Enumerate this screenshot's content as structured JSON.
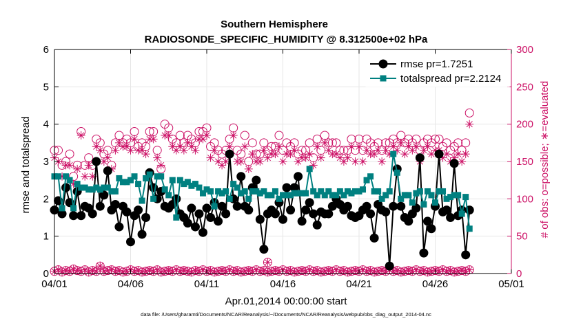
{
  "colors": {
    "rmse": "#000000",
    "totalspread": "#008080",
    "obs": "#cc1166",
    "axis_left": "#000000",
    "axis_right": "#cc1166"
  },
  "chart_data": {
    "type": "line",
    "title_line1": "Southern Hemisphere",
    "title_line2": "RADIOSONDE_SPECIFIC_HUMIDITY @ 8.312500e+02 hPa",
    "xlabel": "Apr.01,2014 00:00:00 start",
    "ylabel_left": "rmse and totalspread",
    "ylabel_right": "# of obs: o=possible; ∗=evaluated",
    "xlim": [
      0,
      30
    ],
    "ylim_left": [
      0,
      6
    ],
    "ylim_right": [
      0,
      300
    ],
    "x_ticks": [
      0,
      5,
      10,
      15,
      20,
      25,
      30
    ],
    "x_tick_labels": [
      "04/01",
      "04/06",
      "04/11",
      "04/16",
      "04/21",
      "04/26",
      "05/01"
    ],
    "y_ticks_left": [
      0,
      1,
      2,
      3,
      4,
      5,
      6
    ],
    "y_ticks_right": [
      0,
      50,
      100,
      150,
      200,
      250,
      300
    ],
    "legend": [
      "rmse pr=1.7251",
      "totalspread pr=2.2124"
    ],
    "footnote": "data file: /Users/gharamti/Documents/NCAR/Reanalysis/~/Documents/NCAR/Reanalysis/webpub/obs_diag_output_2014-04.nc",
    "x_step_days": 0.25,
    "series": [
      {
        "name": "rmse",
        "axis": "left",
        "values": [
          1.7,
          1.95,
          1.6,
          2.3,
          1.9,
          1.55,
          2.2,
          1.55,
          1.8,
          1.75,
          1.6,
          3.0,
          1.8,
          2.1,
          2.75,
          1.7,
          1.85,
          1.25,
          1.8,
          1.65,
          0.85,
          1.55,
          1.7,
          1.05,
          1.5,
          2.7,
          2.3,
          2.0,
          2.2,
          1.8,
          1.75,
          1.85,
          2.0,
          1.6,
          1.5,
          1.35,
          1.75,
          1.25,
          1.6,
          1.1,
          1.75,
          1.5,
          1.9,
          1.4,
          1.8,
          1.6,
          3.2,
          2.0,
          1.8,
          2.6,
          1.8,
          1.7,
          2.3,
          2.5,
          1.45,
          0.65,
          1.6,
          1.7,
          1.6,
          1.9,
          1.45,
          2.3,
          1.7,
          2.3,
          2.6,
          1.4,
          1.7,
          1.9,
          1.6,
          1.3,
          1.65,
          1.6,
          1.6,
          1.8,
          2.0,
          1.85,
          1.7,
          1.8,
          1.55,
          1.5,
          1.55,
          1.7,
          1.8,
          1.6,
          0.95,
          1.85,
          1.7,
          1.65,
          0.2,
          1.8,
          2.8,
          1.8,
          1.5,
          1.4,
          1.6,
          1.75,
          3.1,
          0.55,
          1.4,
          1.2,
          1.8,
          3.2,
          1.65,
          1.7,
          1.5,
          2.95,
          1.55,
          1.7,
          0.5,
          1.7
        ],
        "marker": "circle"
      },
      {
        "name": "totalspread",
        "axis": "left",
        "values": [
          2.6,
          2.6,
          1.75,
          2.6,
          2.5,
          1.75,
          2.4,
          2.3,
          2.3,
          2.25,
          2.25,
          2.3,
          2.25,
          2.3,
          2.3,
          2.2,
          2.2,
          2.55,
          2.45,
          2.45,
          2.5,
          2.6,
          2.4,
          1.95,
          2.55,
          2.65,
          2.0,
          2.6,
          2.6,
          2.25,
          2.1,
          2.5,
          1.5,
          2.5,
          2.4,
          2.45,
          2.35,
          2.4,
          2.3,
          2.15,
          2.25,
          2.2,
          1.8,
          2.2,
          2.15,
          2.2,
          2.0,
          2.4,
          2.3,
          2.15,
          2.2,
          2.0,
          2.2,
          2.2,
          2.15,
          2.2,
          2.1,
          2.1,
          2.2,
          2.0,
          2.1,
          2.1,
          2.1,
          2.15,
          2.15,
          2.15,
          2.15,
          2.8,
          2.2,
          2.1,
          2.2,
          2.1,
          2.2,
          2.1,
          2.1,
          2.2,
          2.1,
          2.2,
          2.15,
          2.2,
          2.2,
          2.25,
          2.5,
          2.6,
          2.2,
          2.2,
          2.0,
          2.1,
          2.2,
          3.2,
          2.7,
          2.0,
          2.1,
          2.1,
          1.9,
          2.15,
          2.2,
          1.85,
          2.2,
          2.1,
          1.9,
          2.2,
          2.2,
          2.0,
          2.05,
          2.1,
          2.1,
          1.6,
          2.05,
          1.2
        ],
        "marker": "square"
      },
      {
        "name": "obs_possible",
        "axis": "right",
        "values": [
          165,
          165,
          145,
          150,
          160,
          130,
          145,
          190,
          145,
          155,
          145,
          180,
          175,
          160,
          165,
          145,
          175,
          185,
          175,
          180,
          175,
          190,
          170,
          175,
          170,
          190,
          190,
          165,
          140,
          200,
          195,
          180,
          175,
          185,
          175,
          185,
          180,
          175,
          190,
          190,
          195,
          170,
          175,
          165,
          160,
          165,
          180,
          195,
          165,
          160,
          185,
          150,
          175,
          160,
          160,
          175,
          165,
          170,
          170,
          185,
          165,
          175,
          170,
          175,
          160,
          165,
          165,
          175,
          155,
          180,
          165,
          185,
          175,
          175,
          175,
          165,
          165,
          165,
          180,
          165,
          180,
          165,
          180,
          175,
          170,
          175,
          165,
          175,
          175,
          180,
          175,
          185,
          175,
          180,
          175,
          180,
          165,
          175,
          180,
          175,
          180,
          180,
          170,
          175,
          165,
          170,
          175,
          165,
          175,
          215
        ],
        "marker": "circle-open"
      },
      {
        "name": "obs_evaluated",
        "axis": "right",
        "values": [
          155,
          150,
          130,
          145,
          145,
          120,
          140,
          185,
          130,
          145,
          130,
          170,
          165,
          150,
          155,
          140,
          165,
          175,
          170,
          170,
          165,
          180,
          165,
          165,
          160,
          180,
          180,
          155,
          145,
          185,
          185,
          170,
          165,
          170,
          165,
          175,
          170,
          165,
          180,
          180,
          185,
          155,
          165,
          150,
          145,
          150,
          170,
          185,
          150,
          150,
          170,
          140,
          160,
          150,
          150,
          165,
          155,
          160,
          160,
          170,
          150,
          160,
          160,
          165,
          150,
          155,
          155,
          160,
          145,
          170,
          155,
          175,
          165,
          160,
          160,
          155,
          150,
          155,
          170,
          150,
          170,
          150,
          165,
          160,
          160,
          165,
          150,
          165,
          160,
          170,
          165,
          175,
          160,
          170,
          165,
          170,
          150,
          165,
          170,
          160,
          165,
          165,
          155,
          160,
          150,
          155,
          160,
          150,
          160,
          200
        ],
        "marker": "asterisk"
      },
      {
        "name": "obs_possible_low",
        "axis": "right",
        "values": [
          3,
          5,
          2,
          4,
          3,
          6,
          4,
          3,
          5,
          2,
          4,
          3,
          10,
          3,
          4,
          5,
          3,
          4,
          2,
          3,
          5,
          3,
          4,
          2,
          3,
          4,
          3,
          5,
          2,
          3,
          4,
          3,
          5,
          3,
          4,
          3,
          2,
          4,
          3,
          5,
          3,
          4,
          2,
          3,
          4,
          3,
          5,
          3,
          4,
          2,
          3,
          4,
          3,
          5,
          3,
          4,
          2,
          3,
          4,
          3,
          5,
          3,
          4,
          2,
          3,
          4,
          3,
          5,
          3,
          4,
          2,
          3,
          4,
          3,
          5,
          3,
          4,
          2,
          3,
          4,
          3,
          5,
          3,
          4,
          2,
          3,
          4,
          3,
          5,
          3,
          4,
          2,
          3,
          4,
          3,
          5,
          3,
          4,
          2,
          3,
          4,
          3,
          5,
          3,
          4,
          2,
          3,
          4,
          3,
          5
        ],
        "marker": "circle-open"
      },
      {
        "name": "obs_evaluated_low",
        "axis": "right",
        "values": [
          3,
          5,
          2,
          4,
          3,
          6,
          4,
          3,
          5,
          2,
          4,
          3,
          10,
          3,
          4,
          5,
          3,
          4,
          2,
          3,
          5,
          3,
          4,
          2,
          3,
          4,
          3,
          5,
          2,
          3,
          4,
          3,
          5,
          3,
          4,
          3,
          2,
          4,
          3,
          5,
          3,
          4,
          2,
          3,
          4,
          3,
          5,
          3,
          4,
          2,
          3,
          4,
          3,
          5,
          3,
          4,
          2,
          3,
          4,
          3,
          5,
          3,
          4,
          2,
          3,
          4,
          3,
          5,
          3,
          4,
          2,
          3,
          4,
          3,
          5,
          3,
          4,
          2,
          3,
          4,
          3,
          5,
          3,
          4,
          2,
          3,
          4,
          3,
          5,
          3,
          4,
          2,
          3,
          4,
          3,
          5,
          3,
          4,
          2,
          3,
          4,
          3,
          5,
          3,
          4,
          2,
          3,
          4,
          3,
          5
        ],
        "marker": "asterisk"
      },
      {
        "name": "obs_outlier",
        "axis": "right",
        "x_day": 14.0,
        "values": [
          15
        ],
        "marker": "circle-open"
      }
    ]
  }
}
